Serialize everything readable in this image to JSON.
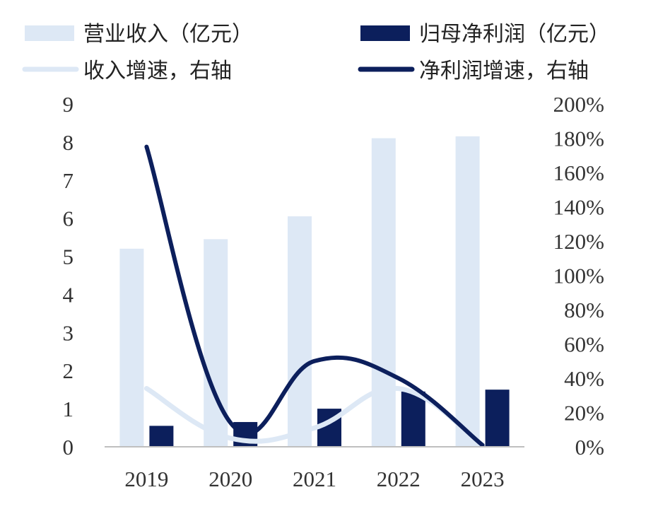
{
  "chart_data": {
    "type": "bar",
    "categories": [
      "2019",
      "2020",
      "2021",
      "2022",
      "2023"
    ],
    "series": [
      {
        "name": "营业收入（亿元）",
        "type": "bar",
        "axis": "left",
        "color": "#dde8f5",
        "values": [
          5.2,
          5.45,
          6.05,
          8.1,
          8.15
        ]
      },
      {
        "name": "归母净利润（亿元）",
        "type": "bar",
        "axis": "left",
        "color": "#0c1f5c",
        "values": [
          0.55,
          0.65,
          1.0,
          1.45,
          1.5
        ]
      },
      {
        "name": "收入增速，右轴",
        "type": "line",
        "axis": "right",
        "color": "#dde8f5",
        "values": [
          34,
          5,
          11,
          34,
          1
        ]
      },
      {
        "name": "净利润增速，右轴",
        "type": "line",
        "axis": "right",
        "color": "#0c1f5c",
        "values": [
          175,
          14,
          50,
          40,
          1
        ]
      }
    ],
    "left_axis": {
      "ylim": [
        0,
        9
      ],
      "ticks": [
        "0",
        "1",
        "2",
        "3",
        "4",
        "5",
        "6",
        "7",
        "8",
        "9"
      ]
    },
    "right_axis": {
      "ylim": [
        0,
        200
      ],
      "ticks": [
        "0%",
        "20%",
        "40%",
        "60%",
        "80%",
        "100%",
        "120%",
        "140%",
        "160%",
        "180%",
        "200%"
      ]
    },
    "grid": false,
    "legend_position": "top"
  }
}
